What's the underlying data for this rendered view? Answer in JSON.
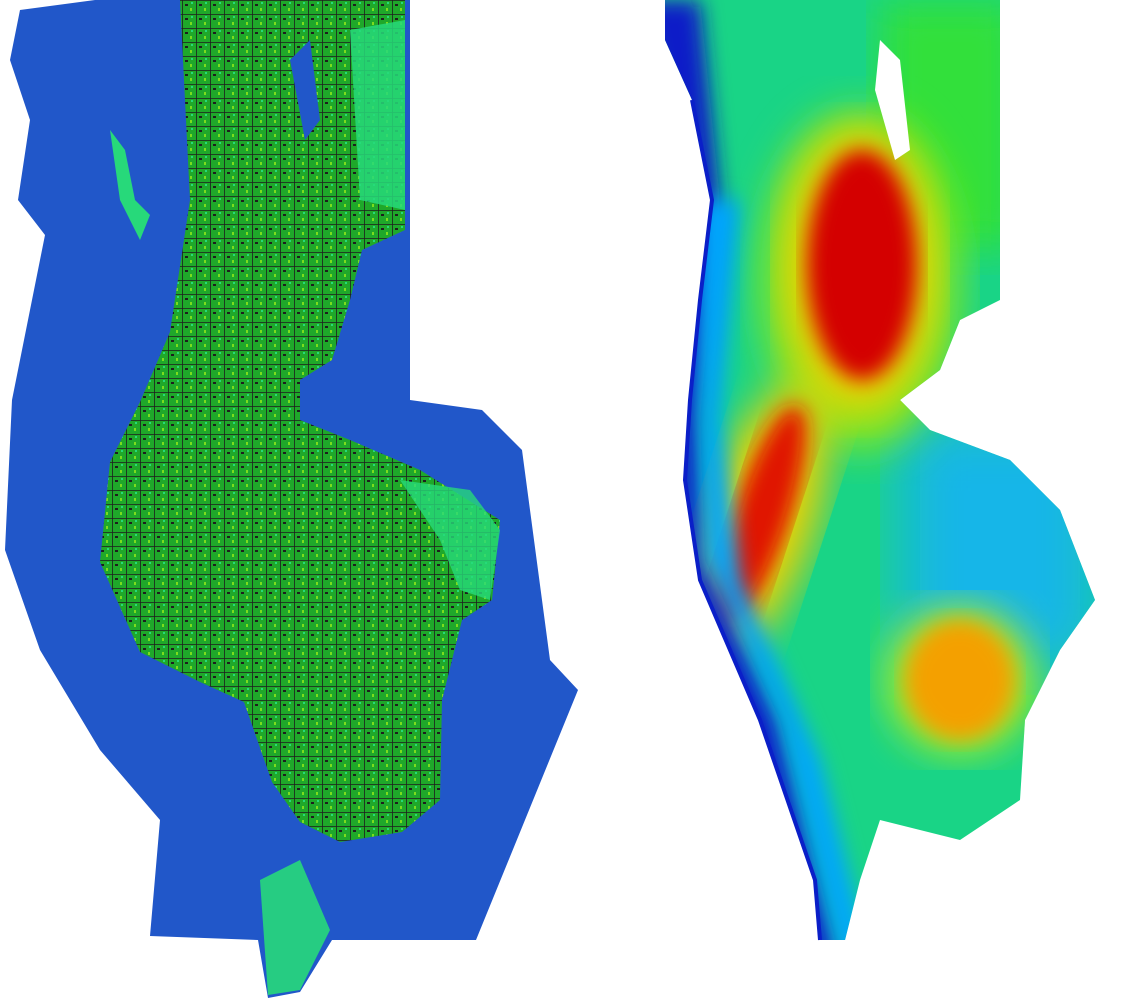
{
  "maps": [
    {
      "id": "land-cover-map",
      "kind": "land cover classification",
      "colors": {
        "water": "#2157c9",
        "vegetation": "#1fa82a",
        "grass": "#27d97a",
        "urban": "#1e1e1e",
        "bright_vegetation": "#7cdc1e",
        "bare": "#ffffff"
      }
    },
    {
      "id": "elevation-map",
      "kind": "elevation heatmap",
      "colormap": "jet",
      "colors": {
        "low": "#0a1fc8",
        "low_mid": "#00a6ff",
        "mid": "#18e05a",
        "mid_high": "#f5e400",
        "high": "#d40000",
        "no_data": "#ffffff"
      }
    }
  ]
}
